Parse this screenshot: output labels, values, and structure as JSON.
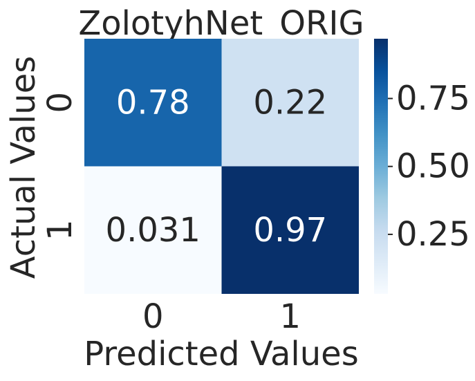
{
  "chart_data": {
    "type": "heatmap",
    "title": "ZolotyhNet_ORIG",
    "xlabel": "Predicted Values",
    "ylabel": "Actual Values",
    "x_categories": [
      "0",
      "1"
    ],
    "y_categories": [
      "0",
      "1"
    ],
    "values": [
      [
        0.78,
        0.22
      ],
      [
        0.031,
        0.97
      ]
    ],
    "annotations": [
      [
        "0.78",
        "0.22"
      ],
      [
        "0.031",
        "0.97"
      ]
    ],
    "colormap": "Blues",
    "colorbar": {
      "range": [
        0.031,
        0.97
      ],
      "ticks": [
        0.25,
        0.5,
        0.75
      ],
      "tick_labels": [
        "0.25",
        "0.50",
        "0.75"
      ]
    },
    "grid": false,
    "legend": "colorbar-right"
  }
}
